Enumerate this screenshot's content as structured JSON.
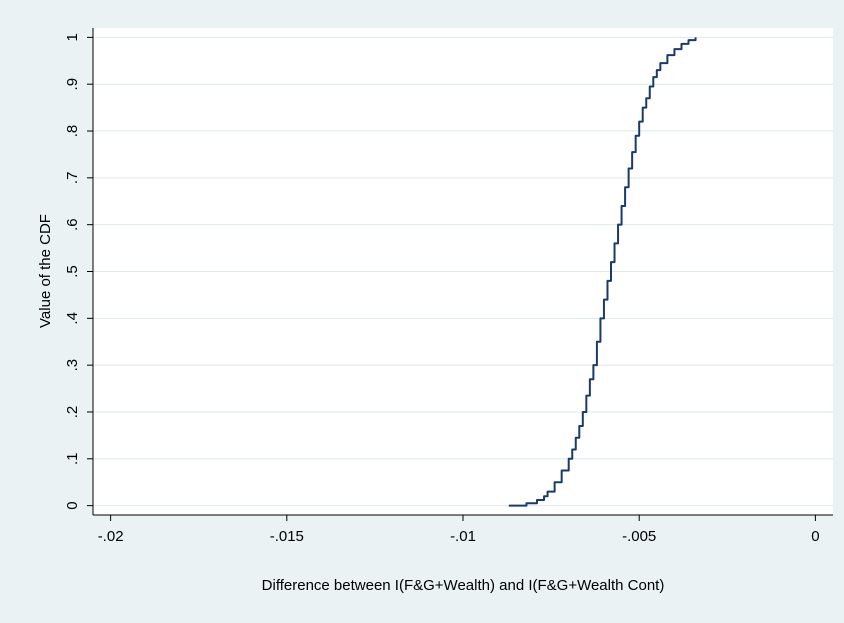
{
  "chart_data": {
    "type": "line",
    "title": "",
    "xlabel": "Difference between I(F&G+Wealth) and I(F&G+Wealth Cont)",
    "ylabel": "Value of the CDF",
    "xlim": [
      -0.0205,
      0.0005
    ],
    "ylim": [
      -0.02,
      1.02
    ],
    "x_ticks": [
      {
        "value": -0.02,
        "label": "-.02"
      },
      {
        "value": -0.015,
        "label": "-.015"
      },
      {
        "value": -0.01,
        "label": "-.01"
      },
      {
        "value": -0.005,
        "label": "-.005"
      },
      {
        "value": 0,
        "label": "0"
      }
    ],
    "y_ticks": [
      {
        "value": 0,
        "label": "0"
      },
      {
        "value": 0.1,
        "label": ".1"
      },
      {
        "value": 0.2,
        "label": ".2"
      },
      {
        "value": 0.3,
        "label": ".3"
      },
      {
        "value": 0.4,
        "label": ".4"
      },
      {
        "value": 0.5,
        "label": ".5"
      },
      {
        "value": 0.6,
        "label": ".6"
      },
      {
        "value": 0.7,
        "label": ".7"
      },
      {
        "value": 0.8,
        "label": ".8"
      },
      {
        "value": 0.9,
        "label": ".9"
      },
      {
        "value": 1,
        "label": "1"
      }
    ],
    "grid": "horizontal",
    "legend": "none",
    "colors": {
      "line": "#1a3a6b",
      "plot_bg": "#ffffff",
      "outer_bg": "#eaf2f3",
      "grid": "#dde8ea"
    },
    "series": [
      {
        "x": [
          -0.0087,
          -0.0082,
          -0.0079,
          -0.0077,
          -0.0076,
          -0.0074,
          -0.0072,
          -0.007,
          -0.0069,
          -0.0068,
          -0.0067,
          -0.0066,
          -0.0065,
          -0.0064,
          -0.0063,
          -0.0062,
          -0.0061,
          -0.006,
          -0.0059,
          -0.0058,
          -0.0057,
          -0.0056,
          -0.0055,
          -0.0054,
          -0.0053,
          -0.0052,
          -0.0051,
          -0.005,
          -0.0049,
          -0.0048,
          -0.0047,
          -0.0046,
          -0.0045,
          -0.0044,
          -0.0042,
          -0.004,
          -0.0038,
          -0.0036,
          -0.0034
        ],
        "y": [
          0.0,
          0.005,
          0.012,
          0.02,
          0.03,
          0.05,
          0.075,
          0.1,
          0.12,
          0.145,
          0.17,
          0.2,
          0.235,
          0.27,
          0.3,
          0.35,
          0.4,
          0.44,
          0.48,
          0.52,
          0.56,
          0.6,
          0.64,
          0.68,
          0.72,
          0.755,
          0.79,
          0.82,
          0.85,
          0.87,
          0.895,
          0.915,
          0.93,
          0.945,
          0.962,
          0.975,
          0.986,
          0.994,
          1.0
        ]
      }
    ]
  }
}
